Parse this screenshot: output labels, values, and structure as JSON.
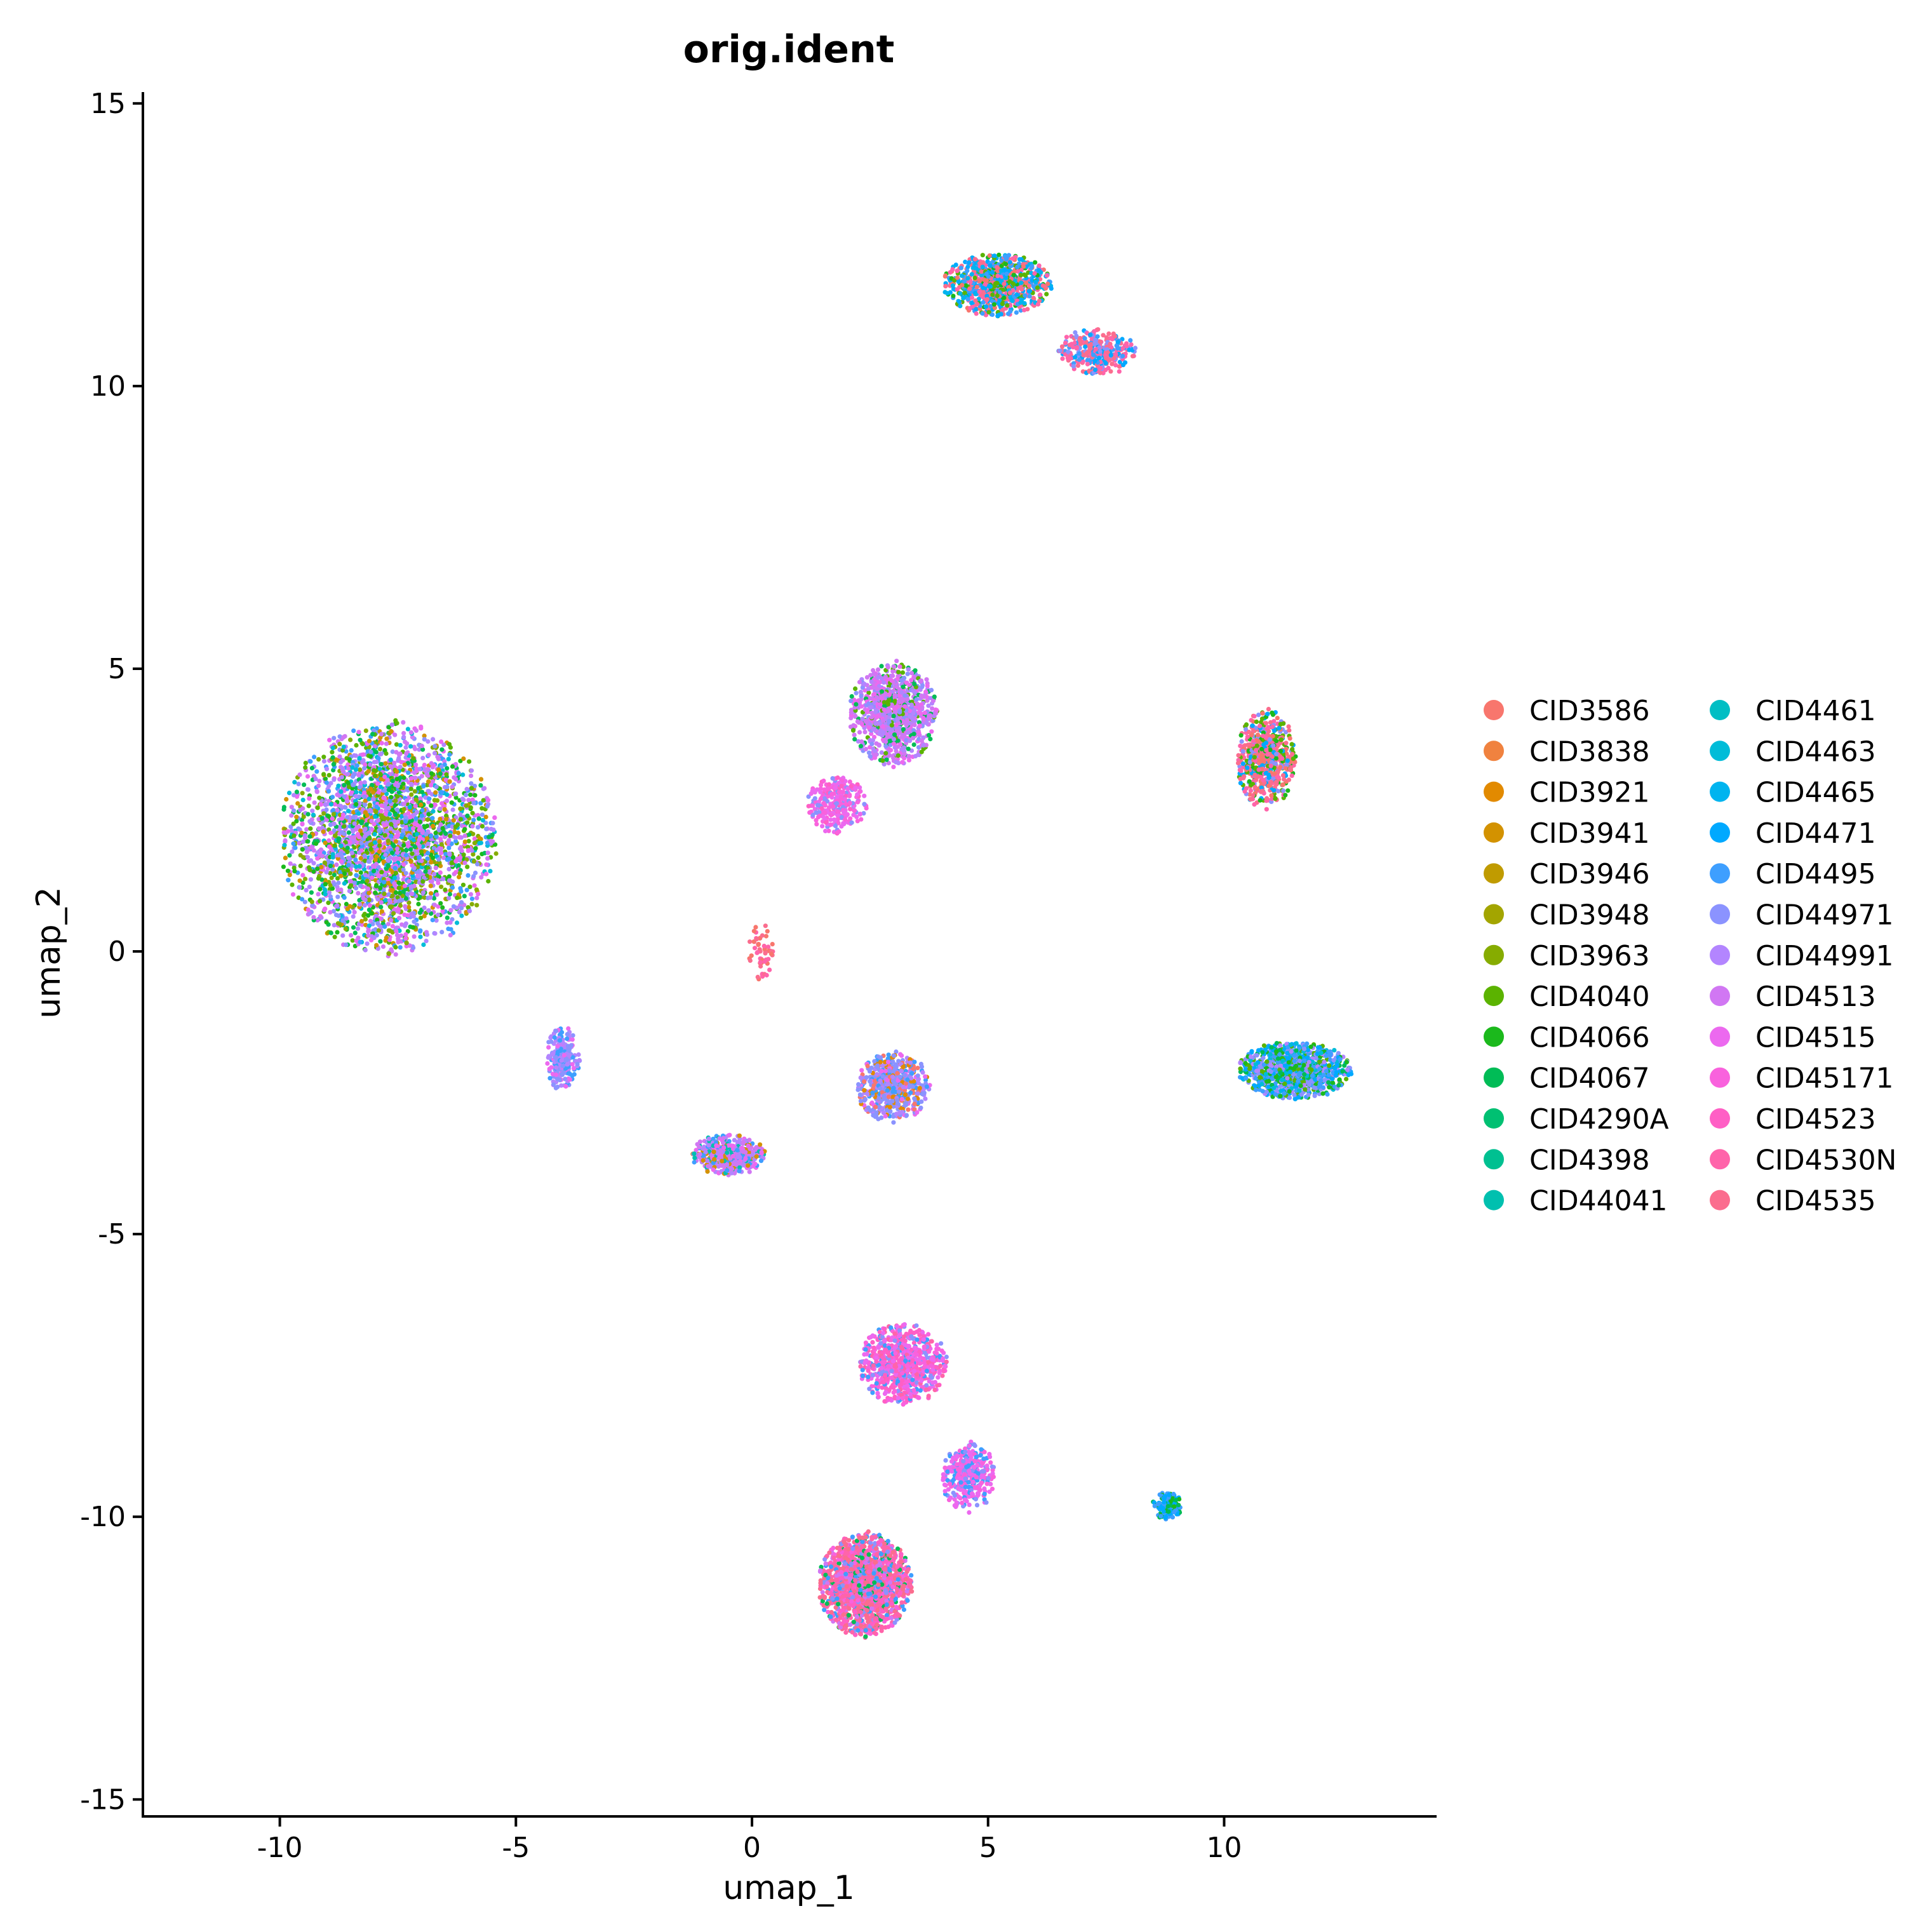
{
  "chart_data": {
    "type": "scatter",
    "title": "orig.ident",
    "xlabel": "umap_1",
    "ylabel": "umap_2",
    "xlim": [
      -12.9,
      14.5
    ],
    "ylim": [
      -15.3,
      15.2
    ],
    "x_ticks": [
      -10,
      -5,
      0,
      5,
      10
    ],
    "y_ticks": [
      15,
      10,
      5,
      0,
      -5,
      -10,
      -15
    ],
    "x_tick_labels": [
      "-10",
      "-5",
      "0",
      "5",
      "10"
    ],
    "y_tick_labels": [
      "15",
      "10",
      "5",
      "0",
      "-5",
      "-10",
      "-15"
    ],
    "grid": false,
    "legend_position": "right",
    "legend_columns": 2,
    "series": [
      {
        "name": "CID3586",
        "color": "#F8766D"
      },
      {
        "name": "CID3838",
        "color": "#F0823F"
      },
      {
        "name": "CID3921",
        "color": "#E28A00"
      },
      {
        "name": "CID3941",
        "color": "#D39200"
      },
      {
        "name": "CID3946",
        "color": "#C09B00"
      },
      {
        "name": "CID3948",
        "color": "#A3A500"
      },
      {
        "name": "CID3963",
        "color": "#86AC00"
      },
      {
        "name": "CID4040",
        "color": "#5BB300"
      },
      {
        "name": "CID4066",
        "color": "#1BB91C"
      },
      {
        "name": "CID4067",
        "color": "#00BC56"
      },
      {
        "name": "CID4290A",
        "color": "#00C072"
      },
      {
        "name": "CID4398",
        "color": "#00C091"
      },
      {
        "name": "CID44041",
        "color": "#00C0AF"
      },
      {
        "name": "CID4461",
        "color": "#00BEC4"
      },
      {
        "name": "CID4463",
        "color": "#00BCD8"
      },
      {
        "name": "CID4465",
        "color": "#00B4EF"
      },
      {
        "name": "CID4471",
        "color": "#00A9FF"
      },
      {
        "name": "CID4495",
        "color": "#3E9FFF"
      },
      {
        "name": "CID44971",
        "color": "#8B93FF"
      },
      {
        "name": "CID44991",
        "color": "#B385FF"
      },
      {
        "name": "CID4513",
        "color": "#D177F3"
      },
      {
        "name": "CID4515",
        "color": "#EC69EF"
      },
      {
        "name": "CID45171",
        "color": "#F962DD"
      },
      {
        "name": "CID4523",
        "color": "#FF5FC5"
      },
      {
        "name": "CID4530N",
        "color": "#FF64AA"
      },
      {
        "name": "CID4535",
        "color": "#FB6D8E"
      }
    ],
    "clusters": [
      {
        "center": [
          -7.7,
          2.0
        ],
        "spread": [
          2.2,
          2.0
        ],
        "count": 3200,
        "mix": [
          [
            6,
            1
          ],
          [
            7,
            1
          ],
          [
            8,
            1
          ],
          [
            20,
            2
          ],
          [
            19,
            2
          ],
          [
            18,
            1
          ],
          [
            17,
            1
          ],
          [
            14,
            1
          ],
          [
            3,
            1
          ],
          [
            21,
            1
          ],
          [
            9,
            1
          ]
        ]
      },
      {
        "center": [
          -4.0,
          -1.9
        ],
        "spread": [
          0.35,
          0.55
        ],
        "count": 220,
        "mix": [
          [
            18,
            2
          ],
          [
            19,
            2
          ],
          [
            17,
            1
          ],
          [
            21,
            1
          ]
        ]
      },
      {
        "center": [
          3.0,
          4.2
        ],
        "spread": [
          0.9,
          0.9
        ],
        "count": 1000,
        "mix": [
          [
            20,
            3
          ],
          [
            21,
            2
          ],
          [
            19,
            2
          ],
          [
            7,
            1
          ],
          [
            9,
            1
          ],
          [
            18,
            1
          ]
        ]
      },
      {
        "center": [
          1.8,
          2.6
        ],
        "spread": [
          0.6,
          0.5
        ],
        "count": 300,
        "mix": [
          [
            22,
            2
          ],
          [
            21,
            2
          ],
          [
            23,
            1
          ],
          [
            18,
            1
          ]
        ]
      },
      {
        "center": [
          -0.5,
          -3.6
        ],
        "spread": [
          0.75,
          0.35
        ],
        "count": 500,
        "mix": [
          [
            20,
            2
          ],
          [
            19,
            2
          ],
          [
            21,
            1
          ],
          [
            17,
            1
          ],
          [
            3,
            1
          ],
          [
            12,
            1
          ]
        ]
      },
      {
        "center": [
          3.0,
          -2.4
        ],
        "spread": [
          0.75,
          0.6
        ],
        "count": 600,
        "mix": [
          [
            18,
            3
          ],
          [
            19,
            2
          ],
          [
            17,
            1
          ],
          [
            21,
            1
          ],
          [
            2,
            1
          ],
          [
            0,
            1
          ]
        ]
      },
      {
        "center": [
          5.2,
          11.8
        ],
        "spread": [
          1.1,
          0.55
        ],
        "count": 900,
        "mix": [
          [
            16,
            2
          ],
          [
            15,
            2
          ],
          [
            17,
            2
          ],
          [
            24,
            2
          ],
          [
            25,
            2
          ],
          [
            8,
            1
          ],
          [
            7,
            1
          ],
          [
            0,
            1
          ]
        ]
      },
      {
        "center": [
          7.3,
          10.6
        ],
        "spread": [
          0.8,
          0.4
        ],
        "count": 350,
        "mix": [
          [
            24,
            2
          ],
          [
            25,
            2
          ],
          [
            16,
            1
          ],
          [
            17,
            1
          ],
          [
            18,
            1
          ]
        ]
      },
      {
        "center": [
          10.9,
          3.4
        ],
        "spread": [
          0.6,
          0.85
        ],
        "count": 650,
        "mix": [
          [
            25,
            2
          ],
          [
            24,
            2
          ],
          [
            0,
            2
          ],
          [
            7,
            1
          ],
          [
            8,
            1
          ],
          [
            16,
            1
          ],
          [
            18,
            1
          ]
        ]
      },
      {
        "center": [
          11.5,
          -2.1
        ],
        "spread": [
          1.15,
          0.5
        ],
        "count": 1100,
        "mix": [
          [
            16,
            2
          ],
          [
            17,
            2
          ],
          [
            18,
            2
          ],
          [
            8,
            1
          ],
          [
            9,
            1
          ],
          [
            14,
            1
          ],
          [
            7,
            1
          ],
          [
            19,
            1
          ]
        ]
      },
      {
        "center": [
          2.4,
          -11.2
        ],
        "spread": [
          0.95,
          0.9
        ],
        "count": 1700,
        "mix": [
          [
            25,
            3
          ],
          [
            24,
            3
          ],
          [
            23,
            2
          ],
          [
            22,
            1
          ],
          [
            18,
            1
          ],
          [
            9,
            1
          ],
          [
            17,
            1
          ],
          [
            20,
            1
          ]
        ]
      },
      {
        "center": [
          3.2,
          -7.3
        ],
        "spread": [
          0.9,
          0.7
        ],
        "count": 800,
        "mix": [
          [
            22,
            2
          ],
          [
            23,
            2
          ],
          [
            21,
            2
          ],
          [
            24,
            1
          ],
          [
            18,
            1
          ],
          [
            17,
            1
          ]
        ]
      },
      {
        "center": [
          4.6,
          -9.3
        ],
        "spread": [
          0.55,
          0.6
        ],
        "count": 350,
        "mix": [
          [
            21,
            2
          ],
          [
            22,
            2
          ],
          [
            18,
            1
          ],
          [
            17,
            1
          ]
        ]
      },
      {
        "center": [
          8.8,
          -9.8
        ],
        "spread": [
          0.3,
          0.25
        ],
        "count": 140,
        "mix": [
          [
            17,
            2
          ],
          [
            16,
            2
          ],
          [
            8,
            1
          ],
          [
            9,
            1
          ]
        ]
      },
      {
        "center": [
          0.2,
          0.0
        ],
        "spread": [
          0.25,
          0.5
        ],
        "count": 60,
        "mix": [
          [
            0,
            1
          ],
          [
            24,
            1
          ],
          [
            25,
            1
          ]
        ]
      }
    ]
  }
}
